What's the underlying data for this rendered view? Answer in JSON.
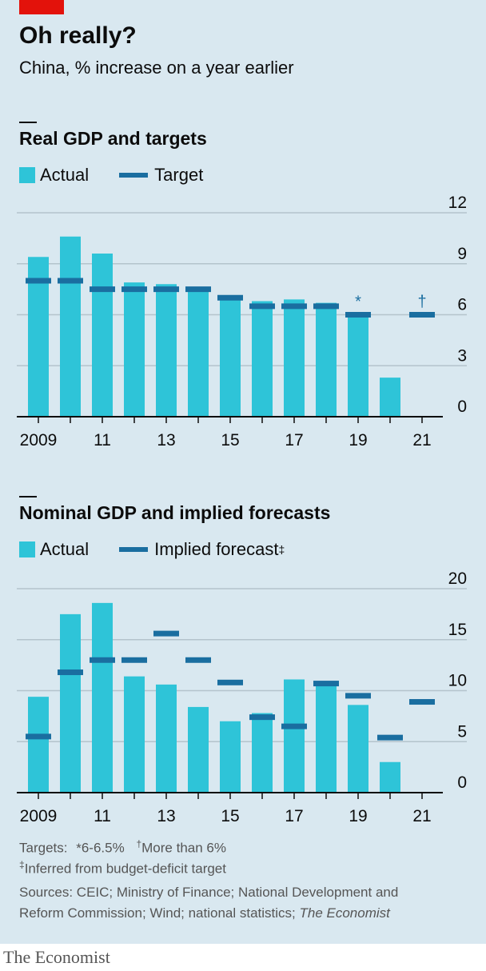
{
  "header": {
    "title": "Oh really?",
    "subtitle": "China, % increase on a year earlier"
  },
  "colors": {
    "actual": "#2ec4d8",
    "target": "#1a6ea0",
    "grid": "#b4c3cc",
    "background": "#d9e8f0",
    "brand_red": "#e3120b"
  },
  "charts": [
    {
      "title": "Real GDP and targets",
      "legend": {
        "actual": "Actual",
        "target": "Target"
      }
    },
    {
      "title": "Nominal GDP and implied forecasts",
      "legend": {
        "actual": "Actual",
        "target": "Implied forecast",
        "target_mark": "‡"
      }
    }
  ],
  "chart_data": [
    {
      "type": "bar",
      "title": "Real GDP and targets",
      "years": [
        2009,
        2010,
        2011,
        2012,
        2013,
        2014,
        2015,
        2016,
        2017,
        2018,
        2019,
        2020,
        2021
      ],
      "x_tick_labels": [
        "2009",
        "11",
        "13",
        "15",
        "17",
        "19",
        "21"
      ],
      "x_tick_years": [
        2009,
        2011,
        2013,
        2015,
        2017,
        2019,
        2021
      ],
      "y_ticks": [
        0,
        3,
        6,
        9,
        12
      ],
      "ylim": [
        0,
        12
      ],
      "series": [
        {
          "name": "Actual",
          "type": "bar",
          "values": [
            9.4,
            10.6,
            9.6,
            7.9,
            7.8,
            7.4,
            7.0,
            6.8,
            6.9,
            6.7,
            6.0,
            2.3,
            null
          ]
        },
        {
          "name": "Target",
          "type": "marker",
          "values": [
            8.0,
            8.0,
            7.5,
            7.5,
            7.5,
            7.5,
            7.0,
            6.5,
            6.5,
            6.5,
            6.0,
            null,
            6.0
          ]
        }
      ],
      "annotations": [
        {
          "year": 2019,
          "text": "*"
        },
        {
          "year": 2021,
          "text": "†"
        }
      ]
    },
    {
      "type": "bar",
      "title": "Nominal GDP and implied forecasts",
      "years": [
        2009,
        2010,
        2011,
        2012,
        2013,
        2014,
        2015,
        2016,
        2017,
        2018,
        2019,
        2020,
        2021
      ],
      "x_tick_labels": [
        "2009",
        "11",
        "13",
        "15",
        "17",
        "19",
        "21"
      ],
      "x_tick_years": [
        2009,
        2011,
        2013,
        2015,
        2017,
        2019,
        2021
      ],
      "y_ticks": [
        0,
        5,
        10,
        15,
        20
      ],
      "ylim": [
        0,
        20
      ],
      "series": [
        {
          "name": "Actual",
          "type": "bar",
          "values": [
            9.4,
            17.5,
            18.6,
            11.4,
            10.6,
            8.4,
            7.0,
            7.8,
            11.1,
            10.5,
            8.6,
            3.0,
            null
          ]
        },
        {
          "name": "Implied forecast",
          "type": "marker",
          "values": [
            5.5,
            11.8,
            13.0,
            13.0,
            15.6,
            13.0,
            10.8,
            7.4,
            6.5,
            10.7,
            9.5,
            5.4,
            8.9
          ]
        }
      ],
      "annotations": []
    }
  ],
  "footnotes": {
    "targets_label": "Targets:",
    "star_mark": "*",
    "star_text": "6-6.5%",
    "dagger_mark": "†",
    "dagger_text": "More than 6%",
    "ddagger_mark": "‡",
    "ddagger_text": "Inferred from budget-deficit target",
    "sources_line1": "Sources: CEIC; Ministry of Finance; National Development and",
    "sources_line2": "Reform Commission; Wind; national statistics; ",
    "sources_italic": "The Economist"
  },
  "brand": "The Economist"
}
